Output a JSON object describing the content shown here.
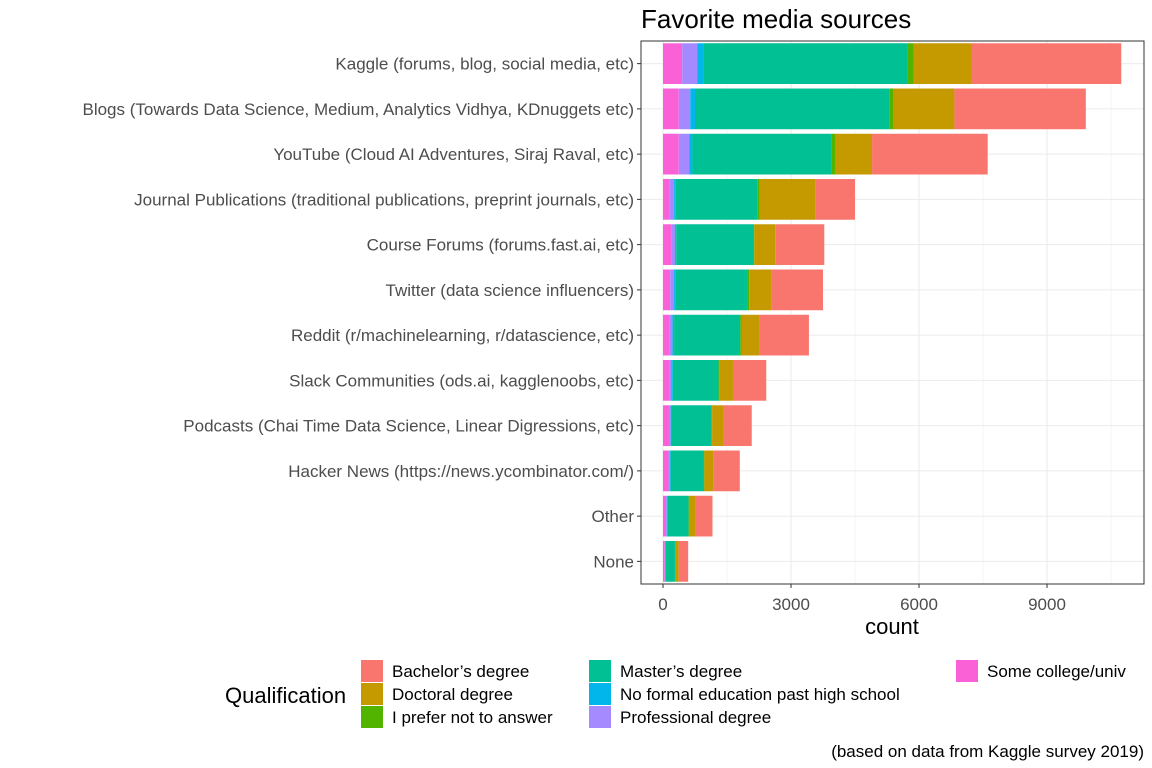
{
  "chart_data": {
    "type": "bar",
    "orientation": "horizontal",
    "stacked": true,
    "title": "Favorite media sources",
    "xlabel": "count",
    "ylabel": "",
    "caption": "(based on data from Kaggle survey 2019)",
    "xlim": [
      0,
      11000
    ],
    "xticks": [
      0,
      3000,
      6000,
      9000
    ],
    "xtick_labels": [
      "0",
      "3000",
      "6000",
      "9000"
    ],
    "grid": true,
    "legend": {
      "title": "Qualification",
      "position": "bottom",
      "items": [
        {
          "label": "Bachelor’s degree",
          "color": "#F8766D"
        },
        {
          "label": "Doctoral degree",
          "color": "#C49A00"
        },
        {
          "label": "I prefer not to answer",
          "color": "#53B400"
        },
        {
          "label": "Master’s degree",
          "color": "#00C094"
        },
        {
          "label": "No formal education past high school",
          "color": "#00B6EB"
        },
        {
          "label": "Professional degree",
          "color": "#A58AFF"
        },
        {
          "label": "Some college/univ",
          "color": "#FB61D7"
        }
      ]
    },
    "categories": [
      "Kaggle (forums, blog, social media, etc)",
      "Blogs (Towards Data Science, Medium, Analytics Vidhya, KDnuggets etc)",
      "YouTube (Cloud AI Adventures, Siraj Raval, etc)",
      "Journal Publications (traditional publications, preprint journals, etc)",
      "Course Forums (forums.fast.ai, etc)",
      "Twitter (data science influencers)",
      "Reddit (r/machinelearning, r/datascience, etc)",
      "Slack Communities (ods.ai, kagglenoobs, etc)",
      "Podcasts (Chai Time Data Science, Linear Digressions, etc)",
      "Hacker News (https://news.ycombinator.com/)",
      "Other",
      "None"
    ],
    "series": [
      {
        "name": "Some college/univ",
        "color": "#FB61D7",
        "values": [
          450,
          370,
          370,
          150,
          190,
          170,
          160,
          150,
          140,
          130,
          70,
          40
        ]
      },
      {
        "name": "Professional degree",
        "color": "#A58AFF",
        "values": [
          350,
          270,
          250,
          110,
          90,
          90,
          60,
          50,
          40,
          30,
          20,
          10
        ]
      },
      {
        "name": "No formal education past high school",
        "color": "#00B6EB",
        "values": [
          140,
          110,
          70,
          40,
          30,
          30,
          40,
          30,
          20,
          20,
          10,
          10
        ]
      },
      {
        "name": "Master’s degree",
        "color": "#00C094",
        "values": [
          4800,
          4550,
          3250,
          1920,
          1800,
          1700,
          1550,
          1070,
          930,
          770,
          500,
          220
        ]
      },
      {
        "name": "I prefer not to answer",
        "color": "#53B400",
        "values": [
          140,
          110,
          110,
          40,
          30,
          30,
          30,
          20,
          20,
          20,
          10,
          10
        ]
      },
      {
        "name": "Doctoral degree",
        "color": "#C49A00",
        "values": [
          1350,
          1420,
          850,
          1320,
          490,
          530,
          420,
          320,
          270,
          210,
          150,
          80
        ]
      },
      {
        "name": "Bachelor’s degree",
        "color": "#F8766D",
        "values": [
          3510,
          3080,
          2710,
          920,
          1150,
          1200,
          1160,
          780,
          660,
          620,
          400,
          220
        ]
      }
    ]
  }
}
